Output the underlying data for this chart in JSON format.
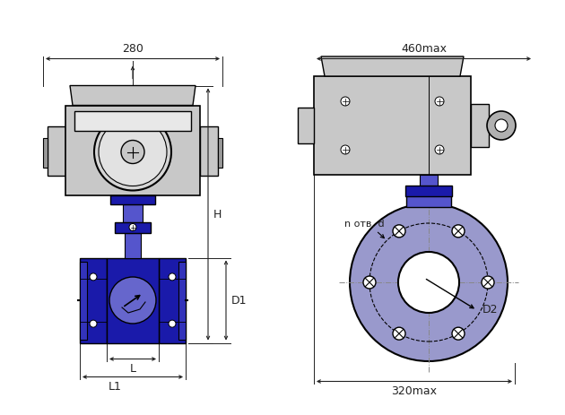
{
  "bg_color": "#ffffff",
  "lc": "#000000",
  "blue_dark": "#1a1aaa",
  "blue_mid": "#3333bb",
  "blue_light": "#6666cc",
  "blue_flange": "#4444bb",
  "blue_very_light": "#9999cc",
  "blue_neck": "#5555cc",
  "gray_body": "#c8c8c8",
  "gray_dark": "#999999",
  "gray_med": "#b0b0b0",
  "dim_color": "#222222",
  "dim_280": "280",
  "dim_460max": "460max",
  "dim_H": "H",
  "dim_D1": "D1",
  "dim_D2": "D2",
  "dim_L": "L",
  "dim_L1": "L1",
  "dim_320max": "320max",
  "dim_notv_d": "n отв. d"
}
